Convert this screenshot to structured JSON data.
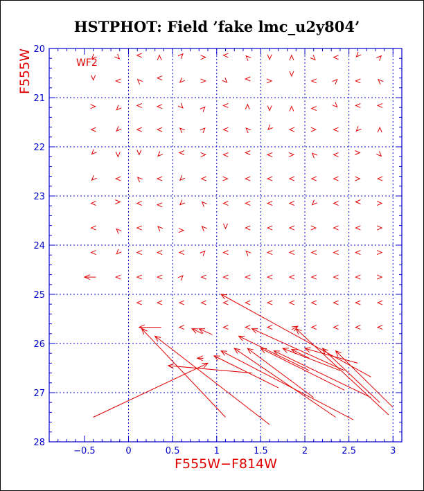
{
  "chart_data": {
    "type": "scatter",
    "title": "HSTPHOT: Field ’fake lmc_u2y804’",
    "xlabel": "F555W−F814W",
    "ylabel": "F555W",
    "annotation": "WF2",
    "xlim": [
      -0.9,
      3.1
    ],
    "ylim": [
      28,
      20
    ],
    "y_inverted": true,
    "grid": true,
    "x_ticks": [
      -0.5,
      0,
      0.5,
      1,
      1.5,
      2,
      2.5,
      3
    ],
    "x_tick_labels": [
      "−0.5",
      "0",
      "0.5",
      "1",
      "1.5",
      "2",
      "2.5",
      "3"
    ],
    "y_ticks": [
      20,
      21,
      22,
      23,
      24,
      25,
      26,
      27,
      28
    ],
    "y_tick_labels": [
      "20",
      "21",
      "22",
      "23",
      "24",
      "25",
      "26",
      "27",
      "28"
    ],
    "x_grid": [
      0,
      0.5,
      1,
      1.5,
      2,
      2.5,
      3
    ],
    "y_grid": [
      21,
      22,
      23,
      24,
      25,
      26,
      27
    ],
    "colors": {
      "axes": "#0000cc",
      "grid": "#0000cc",
      "marks": "#e00000",
      "title": "#000000"
    },
    "vectors": [
      {
        "x": 1.05,
        "y": 25.0,
        "x1": 2.75,
        "y1": 26.68
      },
      {
        "x": 1.4,
        "y": 25.7,
        "x1": 2.45,
        "y1": 26.55
      },
      {
        "x": 1.9,
        "y": 25.7,
        "x1": 2.95,
        "y1": 27.45
      },
      {
        "x": 0.15,
        "y": 25.7,
        "x1": 1.1,
        "y1": 27.5
      },
      {
        "x": 0.3,
        "y": 25.85,
        "x1": 1.6,
        "y1": 27.65
      },
      {
        "x": 0.45,
        "y": 26.45,
        "x1": 1.4,
        "y1": 26.6
      },
      {
        "x": 0.9,
        "y": 26.4,
        "x1": -0.4,
        "y1": 27.5
      },
      {
        "x": 0.97,
        "y": 26.25,
        "x1": 1.7,
        "y1": 26.9
      },
      {
        "x": 1.05,
        "y": 26.15,
        "x1": 2.55,
        "y1": 27.55
      },
      {
        "x": 1.2,
        "y": 26.1,
        "x1": 2.35,
        "y1": 27.5
      },
      {
        "x": 1.35,
        "y": 26.1,
        "x1": 2.1,
        "y1": 27.1
      },
      {
        "x": 1.5,
        "y": 26.1,
        "x1": 2.45,
        "y1": 26.95
      },
      {
        "x": 1.65,
        "y": 26.15,
        "x1": 2.75,
        "y1": 27.1
      },
      {
        "x": 1.75,
        "y": 26.1,
        "x1": 2.4,
        "y1": 26.55
      },
      {
        "x": 2.0,
        "y": 26.1,
        "x1": 2.6,
        "y1": 26.4
      },
      {
        "x": 2.2,
        "y": 26.1,
        "x1": 2.85,
        "y1": 27.2
      },
      {
        "x": 2.35,
        "y": 26.15,
        "x1": 3.0,
        "y1": 27.3
      },
      {
        "x": 1.25,
        "y": 25.85,
        "x1": 2.05,
        "y1": 26.55
      },
      {
        "x": -0.5,
        "y": 24.65,
        "x1": -0.37,
        "y1": 24.65
      },
      {
        "x": 0.12,
        "y": 25.67,
        "x1": 0.37,
        "y1": 25.67
      },
      {
        "x": 0.78,
        "y": 26.3,
        "x1": 0.85,
        "y1": 26.3
      },
      {
        "x": 0.72,
        "y": 25.7,
        "x1": 0.84,
        "y1": 25.8
      },
      {
        "x": 0.8,
        "y": 25.7,
        "x1": 0.95,
        "y1": 25.82
      },
      {
        "x": 1.85,
        "y": 26.12,
        "x1": 2.05,
        "y1": 26.3
      },
      {
        "x": 1.92,
        "y": 25.65,
        "x1": 1.85,
        "y1": 25.72
      }
    ],
    "marks": [
      {
        "x": -0.4,
        "y": 20.18,
        "a": 315
      },
      {
        "x": -0.12,
        "y": 20.18,
        "a": 225
      },
      {
        "x": 0.12,
        "y": 20.14,
        "a": 0
      },
      {
        "x": 0.35,
        "y": 20.18,
        "a": 90
      },
      {
        "x": 0.6,
        "y": 20.14,
        "a": 135
      },
      {
        "x": 0.85,
        "y": 20.18,
        "a": 180
      },
      {
        "x": 1.1,
        "y": 20.14,
        "a": 0
      },
      {
        "x": 1.35,
        "y": 20.18,
        "a": 45
      },
      {
        "x": 1.6,
        "y": 20.18,
        "a": 270
      },
      {
        "x": 1.85,
        "y": 20.18,
        "a": 90
      },
      {
        "x": 2.1,
        "y": 20.2,
        "a": 225
      },
      {
        "x": 2.35,
        "y": 20.18,
        "a": 0
      },
      {
        "x": 2.6,
        "y": 20.14,
        "a": 315
      },
      {
        "x": 2.85,
        "y": 20.18,
        "a": 135
      },
      {
        "x": -0.4,
        "y": 20.6,
        "a": 270
      },
      {
        "x": -0.12,
        "y": 20.66,
        "a": 0
      },
      {
        "x": 0.12,
        "y": 20.66,
        "a": 45
      },
      {
        "x": 0.35,
        "y": 20.6,
        "a": 0
      },
      {
        "x": 0.6,
        "y": 20.66,
        "a": 315
      },
      {
        "x": 0.85,
        "y": 20.66,
        "a": 180
      },
      {
        "x": 1.1,
        "y": 20.66,
        "a": 225
      },
      {
        "x": 1.35,
        "y": 20.62,
        "a": 0
      },
      {
        "x": 1.6,
        "y": 20.66,
        "a": 180
      },
      {
        "x": 1.85,
        "y": 20.52,
        "a": 270
      },
      {
        "x": 2.1,
        "y": 20.66,
        "a": 0
      },
      {
        "x": 2.35,
        "y": 20.66,
        "a": 135
      },
      {
        "x": 2.6,
        "y": 20.66,
        "a": 0
      },
      {
        "x": 2.85,
        "y": 20.66,
        "a": 45
      },
      {
        "x": -0.4,
        "y": 21.18,
        "a": 180
      },
      {
        "x": -0.12,
        "y": 21.22,
        "a": 315
      },
      {
        "x": 0.12,
        "y": 21.16,
        "a": 0
      },
      {
        "x": 0.35,
        "y": 21.18,
        "a": 0
      },
      {
        "x": 0.6,
        "y": 21.18,
        "a": 225
      },
      {
        "x": 0.85,
        "y": 21.22,
        "a": 135
      },
      {
        "x": 1.1,
        "y": 21.16,
        "a": 0
      },
      {
        "x": 1.35,
        "y": 21.18,
        "a": 90
      },
      {
        "x": 1.6,
        "y": 21.22,
        "a": 270
      },
      {
        "x": 1.85,
        "y": 21.22,
        "a": 90
      },
      {
        "x": 2.1,
        "y": 21.22,
        "a": 0
      },
      {
        "x": 2.35,
        "y": 21.16,
        "a": 225
      },
      {
        "x": 2.6,
        "y": 21.16,
        "a": 0
      },
      {
        "x": 2.85,
        "y": 21.16,
        "a": 0
      },
      {
        "x": -0.4,
        "y": 21.65,
        "a": 0
      },
      {
        "x": -0.12,
        "y": 21.65,
        "a": 315
      },
      {
        "x": 0.12,
        "y": 21.65,
        "a": 0
      },
      {
        "x": 0.35,
        "y": 21.65,
        "a": 0
      },
      {
        "x": 0.6,
        "y": 21.65,
        "a": 45
      },
      {
        "x": 0.85,
        "y": 21.65,
        "a": 135
      },
      {
        "x": 1.1,
        "y": 21.65,
        "a": 0
      },
      {
        "x": 1.35,
        "y": 21.65,
        "a": 45
      },
      {
        "x": 1.6,
        "y": 21.62,
        "a": 315
      },
      {
        "x": 1.85,
        "y": 21.65,
        "a": 0
      },
      {
        "x": 2.1,
        "y": 21.65,
        "a": 180
      },
      {
        "x": 2.35,
        "y": 21.65,
        "a": 0
      },
      {
        "x": 2.6,
        "y": 21.65,
        "a": 315
      },
      {
        "x": 2.85,
        "y": 21.65,
        "a": 90
      },
      {
        "x": -0.4,
        "y": 22.12,
        "a": 315
      },
      {
        "x": -0.12,
        "y": 22.16,
        "a": 270
      },
      {
        "x": 0.12,
        "y": 22.12,
        "a": 270
      },
      {
        "x": 0.35,
        "y": 22.16,
        "a": 315
      },
      {
        "x": 0.6,
        "y": 22.12,
        "a": 0
      },
      {
        "x": 0.85,
        "y": 22.16,
        "a": 180
      },
      {
        "x": 1.1,
        "y": 22.16,
        "a": 0
      },
      {
        "x": 1.35,
        "y": 22.12,
        "a": 0
      },
      {
        "x": 1.6,
        "y": 22.16,
        "a": 0
      },
      {
        "x": 1.85,
        "y": 22.16,
        "a": 180
      },
      {
        "x": 2.1,
        "y": 22.16,
        "a": 45
      },
      {
        "x": 2.35,
        "y": 22.16,
        "a": 0
      },
      {
        "x": 2.6,
        "y": 22.12,
        "a": 180
      },
      {
        "x": 2.85,
        "y": 22.16,
        "a": 225
      },
      {
        "x": -0.4,
        "y": 22.65,
        "a": 315
      },
      {
        "x": -0.12,
        "y": 22.65,
        "a": 0
      },
      {
        "x": 0.12,
        "y": 22.65,
        "a": 45
      },
      {
        "x": 0.35,
        "y": 22.65,
        "a": 0
      },
      {
        "x": 0.6,
        "y": 22.65,
        "a": 315
      },
      {
        "x": 0.85,
        "y": 22.65,
        "a": 0
      },
      {
        "x": 1.1,
        "y": 22.65,
        "a": 180
      },
      {
        "x": 1.35,
        "y": 22.65,
        "a": 0
      },
      {
        "x": 1.6,
        "y": 22.65,
        "a": 0
      },
      {
        "x": 1.85,
        "y": 22.65,
        "a": 0
      },
      {
        "x": 2.1,
        "y": 22.65,
        "a": 0
      },
      {
        "x": 2.35,
        "y": 22.65,
        "a": 0
      },
      {
        "x": 2.6,
        "y": 22.65,
        "a": 180
      },
      {
        "x": 2.85,
        "y": 22.65,
        "a": 0
      },
      {
        "x": -0.4,
        "y": 23.15,
        "a": 0
      },
      {
        "x": -0.12,
        "y": 23.12,
        "a": 180
      },
      {
        "x": 0.12,
        "y": 23.15,
        "a": 0
      },
      {
        "x": 0.35,
        "y": 23.18,
        "a": 0
      },
      {
        "x": 0.6,
        "y": 23.15,
        "a": 315
      },
      {
        "x": 0.85,
        "y": 23.15,
        "a": 45
      },
      {
        "x": 1.1,
        "y": 23.15,
        "a": 0
      },
      {
        "x": 1.35,
        "y": 23.15,
        "a": 0
      },
      {
        "x": 1.6,
        "y": 23.15,
        "a": 0
      },
      {
        "x": 1.85,
        "y": 23.15,
        "a": 0
      },
      {
        "x": 2.1,
        "y": 23.15,
        "a": 315
      },
      {
        "x": 2.35,
        "y": 23.15,
        "a": 0
      },
      {
        "x": 2.6,
        "y": 23.12,
        "a": 0
      },
      {
        "x": 2.85,
        "y": 23.15,
        "a": 180
      },
      {
        "x": -0.4,
        "y": 23.65,
        "a": 0
      },
      {
        "x": -0.12,
        "y": 23.7,
        "a": 45
      },
      {
        "x": 0.12,
        "y": 23.65,
        "a": 0
      },
      {
        "x": 0.35,
        "y": 23.65,
        "a": 45
      },
      {
        "x": 0.6,
        "y": 23.7,
        "a": 180
      },
      {
        "x": 0.85,
        "y": 23.65,
        "a": 45
      },
      {
        "x": 1.1,
        "y": 23.62,
        "a": 270
      },
      {
        "x": 1.35,
        "y": 23.65,
        "a": 0
      },
      {
        "x": 1.6,
        "y": 23.65,
        "a": 0
      },
      {
        "x": 1.85,
        "y": 23.65,
        "a": 0
      },
      {
        "x": 2.1,
        "y": 23.65,
        "a": 180
      },
      {
        "x": 2.35,
        "y": 23.65,
        "a": 0
      },
      {
        "x": 2.6,
        "y": 23.65,
        "a": 0
      },
      {
        "x": 2.85,
        "y": 23.65,
        "a": 180
      },
      {
        "x": -0.4,
        "y": 24.15,
        "a": 0
      },
      {
        "x": -0.12,
        "y": 24.15,
        "a": 315
      },
      {
        "x": 0.12,
        "y": 24.15,
        "a": 0
      },
      {
        "x": 0.35,
        "y": 24.15,
        "a": 0
      },
      {
        "x": 0.6,
        "y": 24.15,
        "a": 0
      },
      {
        "x": 0.85,
        "y": 24.15,
        "a": 135
      },
      {
        "x": 1.1,
        "y": 24.15,
        "a": 0
      },
      {
        "x": 1.35,
        "y": 24.15,
        "a": 45
      },
      {
        "x": 1.6,
        "y": 24.15,
        "a": 0
      },
      {
        "x": 1.85,
        "y": 24.15,
        "a": 0
      },
      {
        "x": 2.1,
        "y": 24.15,
        "a": 0
      },
      {
        "x": 2.35,
        "y": 24.15,
        "a": 0
      },
      {
        "x": 2.6,
        "y": 24.15,
        "a": 0
      },
      {
        "x": 2.85,
        "y": 24.15,
        "a": 180
      },
      {
        "x": -0.12,
        "y": 24.65,
        "a": 0
      },
      {
        "x": 0.12,
        "y": 24.65,
        "a": 0
      },
      {
        "x": 0.35,
        "y": 24.65,
        "a": 0
      },
      {
        "x": 0.6,
        "y": 24.65,
        "a": 135
      },
      {
        "x": 0.85,
        "y": 24.65,
        "a": 0
      },
      {
        "x": 1.1,
        "y": 24.65,
        "a": 0
      },
      {
        "x": 1.35,
        "y": 24.65,
        "a": 0
      },
      {
        "x": 1.6,
        "y": 24.65,
        "a": 0
      },
      {
        "x": 1.85,
        "y": 24.65,
        "a": 0
      },
      {
        "x": 2.1,
        "y": 24.65,
        "a": 0
      },
      {
        "x": 2.35,
        "y": 24.65,
        "a": 0
      },
      {
        "x": 2.6,
        "y": 24.65,
        "a": 0
      },
      {
        "x": 2.85,
        "y": 24.65,
        "a": 180
      },
      {
        "x": 0.12,
        "y": 25.17,
        "a": 0
      },
      {
        "x": 0.35,
        "y": 25.17,
        "a": 0
      },
      {
        "x": 0.6,
        "y": 25.17,
        "a": 0
      },
      {
        "x": 0.85,
        "y": 25.17,
        "a": 0
      },
      {
        "x": 1.1,
        "y": 25.17,
        "a": 0
      },
      {
        "x": 1.35,
        "y": 25.17,
        "a": 0
      },
      {
        "x": 1.6,
        "y": 25.17,
        "a": 0
      },
      {
        "x": 1.85,
        "y": 25.17,
        "a": 0
      },
      {
        "x": 2.1,
        "y": 25.17,
        "a": 0
      },
      {
        "x": 2.35,
        "y": 25.17,
        "a": 0
      },
      {
        "x": 2.6,
        "y": 25.17,
        "a": 0
      },
      {
        "x": 2.85,
        "y": 25.17,
        "a": 0
      },
      {
        "x": 0.6,
        "y": 25.67,
        "a": 0
      },
      {
        "x": 1.1,
        "y": 25.67,
        "a": 0
      },
      {
        "x": 1.35,
        "y": 25.67,
        "a": 0
      },
      {
        "x": 1.6,
        "y": 25.67,
        "a": 0
      },
      {
        "x": 2.1,
        "y": 25.67,
        "a": 0
      },
      {
        "x": 2.35,
        "y": 25.67,
        "a": 0
      },
      {
        "x": 2.6,
        "y": 25.67,
        "a": 0
      },
      {
        "x": 2.85,
        "y": 25.67,
        "a": 0
      }
    ]
  }
}
